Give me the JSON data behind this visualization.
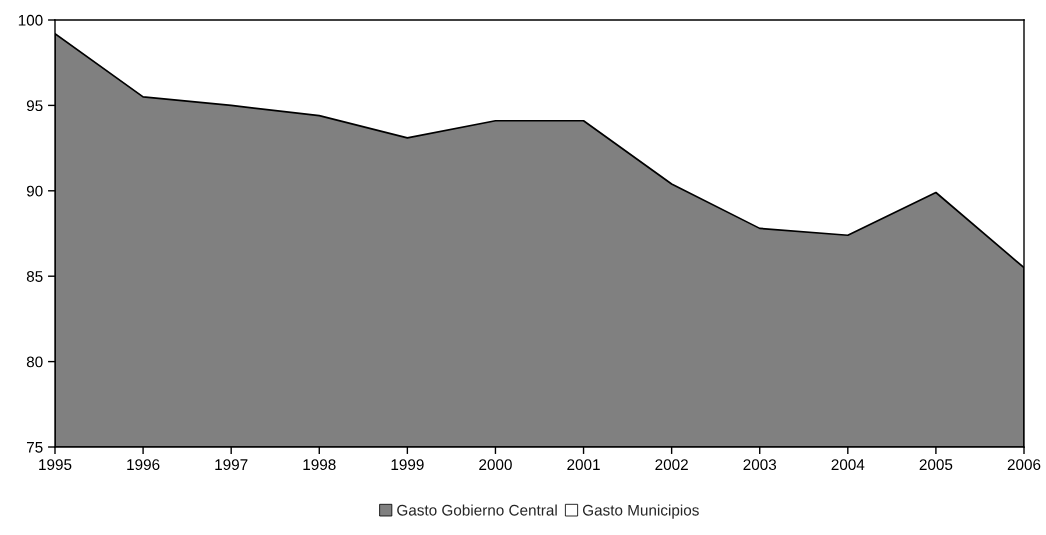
{
  "chart_data": {
    "type": "area",
    "categories": [
      "1995",
      "1996",
      "1997",
      "1998",
      "1999",
      "2000",
      "2001",
      "2002",
      "2003",
      "2004",
      "2005",
      "2006"
    ],
    "series": [
      {
        "name": "Gasto Gobierno Central",
        "color": "#808080",
        "values": [
          99.2,
          95.5,
          95.0,
          94.4,
          93.1,
          94.1,
          94.1,
          90.4,
          87.8,
          87.4,
          89.9,
          85.5
        ]
      },
      {
        "name": "Gasto Municipios",
        "color": "#ffffff",
        "values": [
          null,
          null,
          null,
          null,
          null,
          null,
          null,
          null,
          null,
          null,
          null,
          null
        ]
      }
    ],
    "ylim": [
      75,
      100
    ],
    "yticks": [
      75,
      80,
      85,
      90,
      95,
      100
    ],
    "legend": "bottom"
  }
}
